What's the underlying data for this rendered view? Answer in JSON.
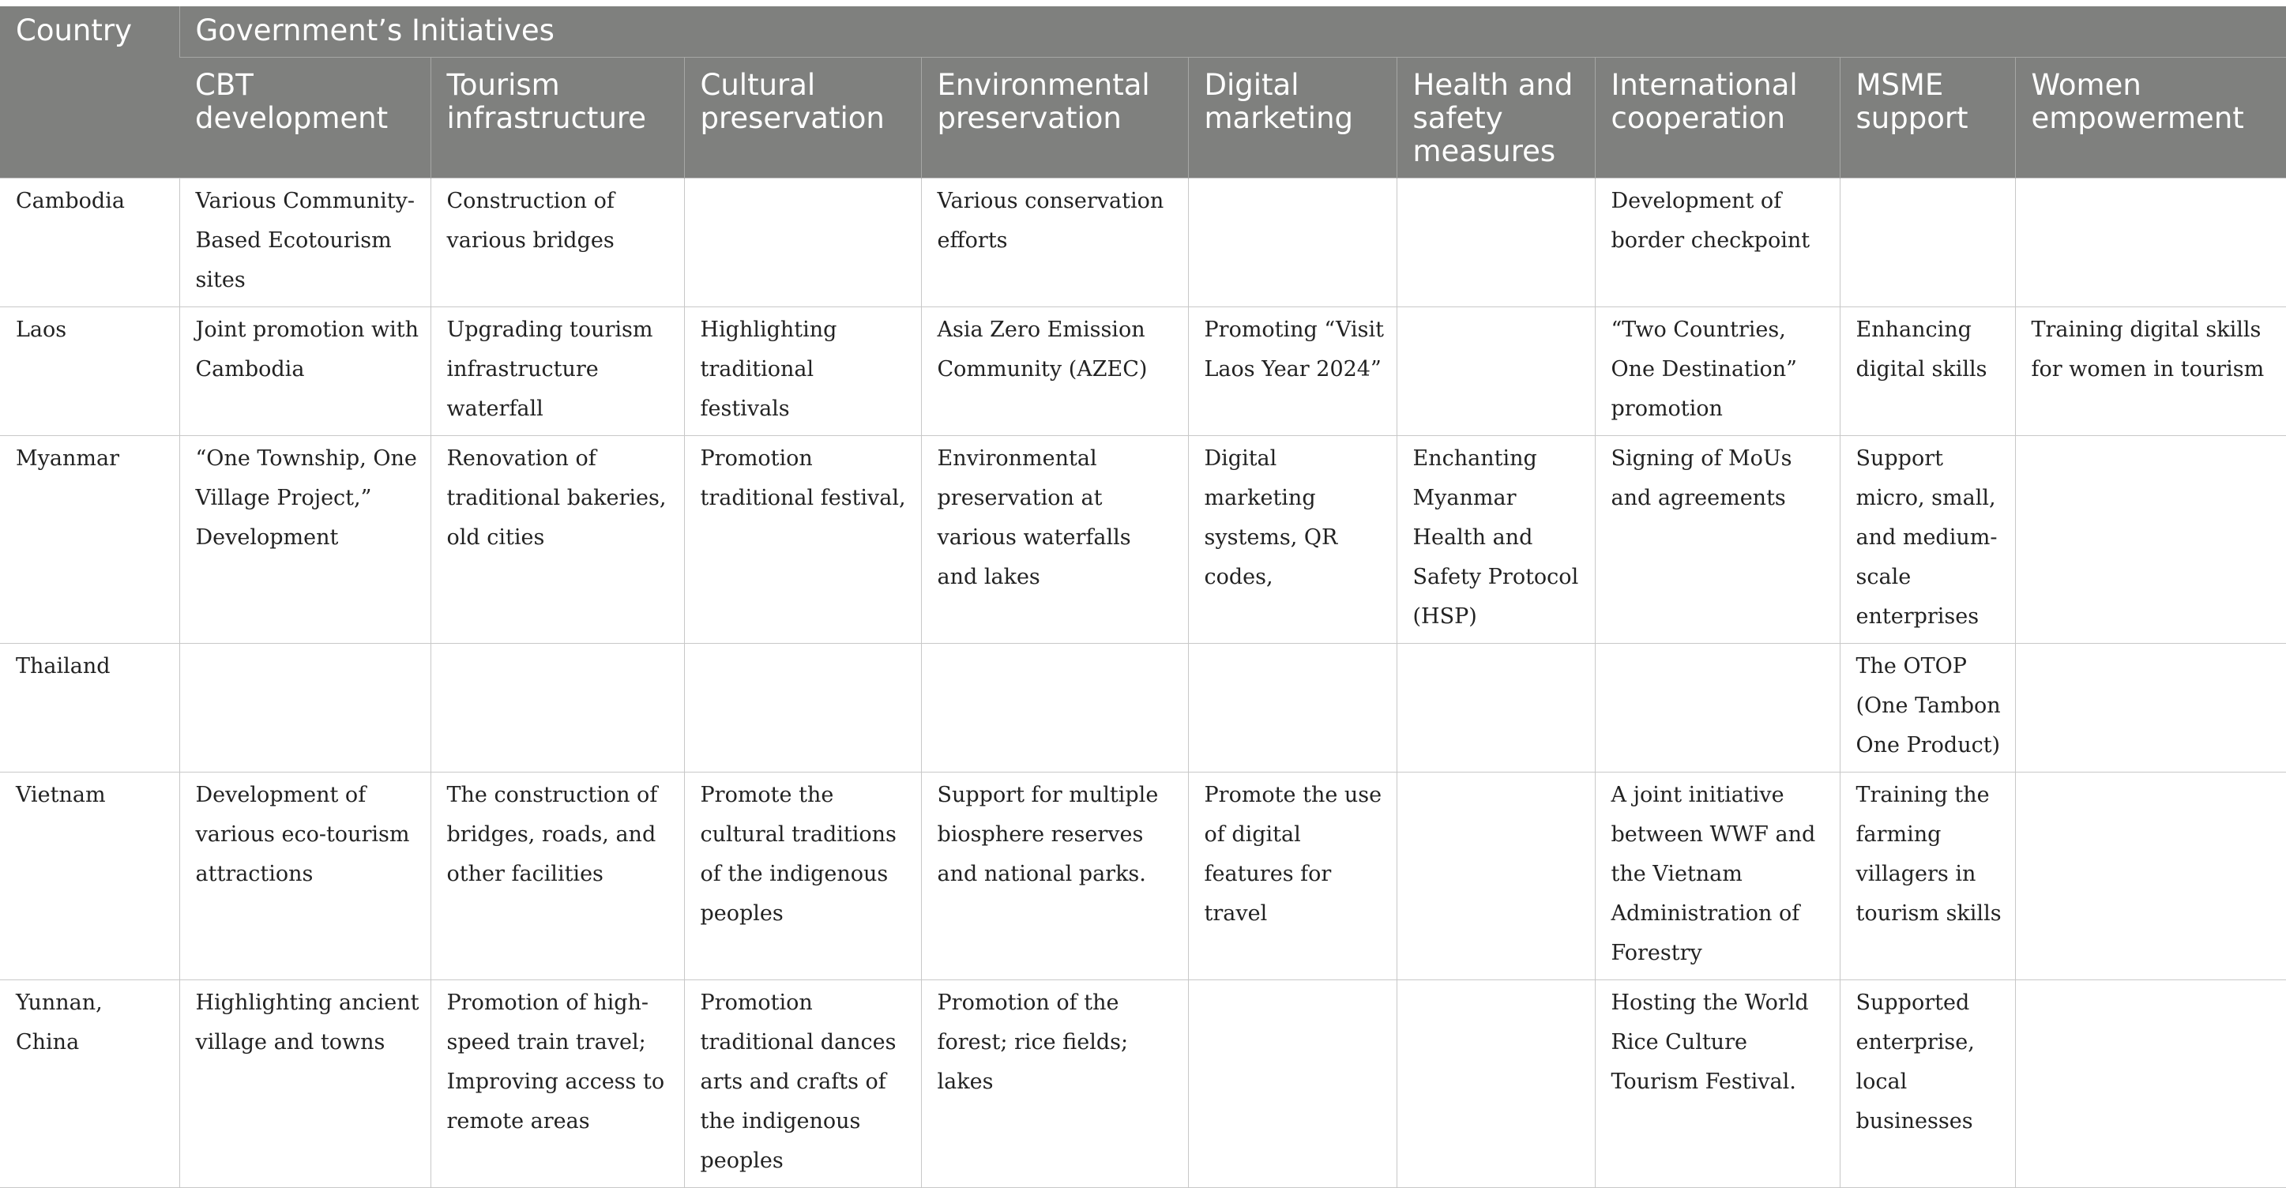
{
  "table": {
    "country_header": "Country",
    "group_header": "Government’s Initiatives",
    "columns": [
      "CBT development",
      "Tourism infrastructure",
      "Cultural preservation",
      "Environmental preservation",
      "Digital marketing",
      "Health and safety measures",
      "International cooperation",
      "MSME support",
      "Women empowerment"
    ],
    "rows": [
      {
        "country": "Cambodia",
        "cells": [
          "Various Community-Based Ecotourism sites",
          "Construction of various bridges",
          "",
          "Various conservation efforts",
          "",
          "",
          "Development of border checkpoint",
          "",
          ""
        ]
      },
      {
        "country": "Laos",
        "cells": [
          "Joint promotion with Cambodia",
          "Upgrading tourism infrastructure waterfall",
          "Highlighting traditional festivals",
          "Asia Zero Emission Community (AZEC)",
          "Promoting “Visit Laos Year 2024”",
          "",
          "“Two Countries, One Destination” promotion",
          "Enhancing digital skills",
          "Training digital skills for women in tourism"
        ]
      },
      {
        "country": "Myanmar",
        "cells": [
          "“One Township, One Village Project,” Development",
          "Renovation of traditional bakeries, old cities",
          "Promotion traditional festival,",
          "Environmental preservation at various waterfalls and lakes",
          "Digital marketing systems, QR codes,",
          "Enchanting Myanmar Health and Safety Protocol (HSP)",
          "Signing of MoUs and agreements",
          "Support micro, small, and medium-scale enterprises",
          ""
        ]
      },
      {
        "country": "Thailand",
        "cells": [
          "",
          "",
          "",
          "",
          "",
          "",
          "",
          "The OTOP (One Tambon One Product)",
          ""
        ]
      },
      {
        "country": "Vietnam",
        "cells": [
          "Development of various eco-tourism attractions",
          "The construction of bridges, roads, and other facilities",
          "Promote the cultural traditions of the indigenous peoples",
          "Support for multiple biosphere reserves and national parks.",
          "Promote the use of digital features for travel",
          "",
          "A joint initiative between WWF and the Vietnam Administration of Forestry",
          "Training the farming villagers in tourism skills",
          ""
        ]
      },
      {
        "country": "Yunnan, China",
        "cells": [
          "Highlighting ancient village and towns",
          "Promotion of high-speed train travel; Improving access to remote areas",
          "Promotion traditional dances arts and crafts of the indigenous peoples",
          "Promotion of the forest; rice fields; lakes",
          "",
          "",
          "Hosting the World Rice Culture Tourism Festival.",
          "Supported enterprise, local businesses",
          ""
        ]
      }
    ]
  }
}
